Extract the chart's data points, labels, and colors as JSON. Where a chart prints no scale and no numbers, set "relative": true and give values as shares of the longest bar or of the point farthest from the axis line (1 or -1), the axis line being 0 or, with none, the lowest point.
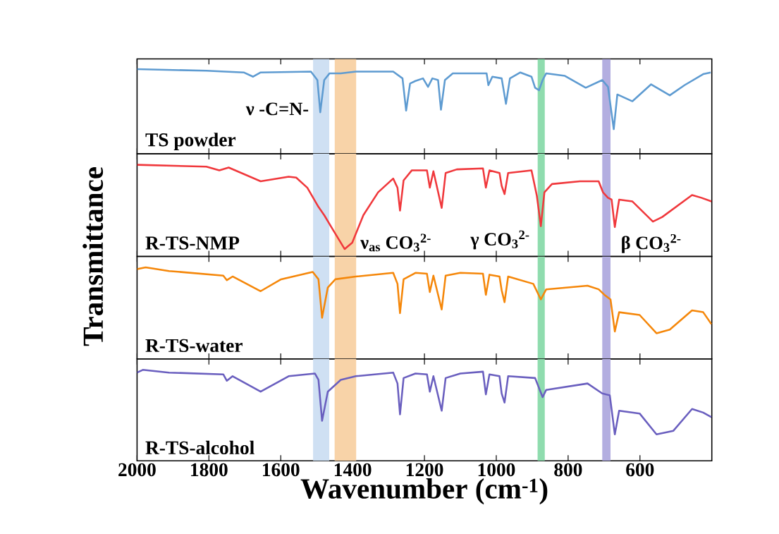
{
  "chart_data": [
    {
      "type": "line",
      "relative": true,
      "xlim": [
        2000,
        400
      ],
      "xticks": [
        2000,
        1800,
        1600,
        1400,
        1200,
        1000,
        800,
        600
      ],
      "tick_labels": false,
      "x": [
        2000,
        1807,
        1703,
        1677,
        1656,
        1516,
        1498,
        1490,
        1479,
        1464,
        1433,
        1391,
        1287,
        1261,
        1251,
        1240,
        1225,
        1204,
        1190,
        1178,
        1162,
        1154,
        1143,
        1121,
        1027,
        1022,
        1011,
        985,
        973,
        962,
        933,
        902,
        892,
        881,
        871,
        861,
        809,
        751,
        705,
        689,
        673,
        663,
        621,
        569,
        517,
        476,
        424,
        403
      ],
      "series": [
        {
          "name": "TS powder",
          "color": "#5e9bd1",
          "values": [
            1.0,
            0.98,
            0.96,
            0.91,
            0.96,
            0.97,
            0.87,
            0.49,
            0.87,
            0.95,
            0.95,
            0.97,
            0.97,
            0.89,
            0.51,
            0.83,
            0.86,
            0.89,
            0.79,
            0.89,
            0.87,
            0.52,
            0.87,
            0.95,
            0.95,
            0.81,
            0.91,
            0.89,
            0.59,
            0.89,
            0.96,
            0.91,
            0.78,
            0.75,
            0.87,
            0.95,
            0.92,
            0.78,
            0.87,
            0.79,
            0.29,
            0.7,
            0.62,
            0.82,
            0.69,
            0.81,
            0.94,
            0.96
          ]
        }
      ],
      "bands": [
        {
          "axis": "x",
          "from": 1510,
          "to": 1465,
          "color": "#cfe0f3"
        },
        {
          "axis": "x",
          "from": 1450,
          "to": 1390,
          "color": "#f8d3a8"
        },
        {
          "axis": "x",
          "from": 885,
          "to": 865,
          "color": "#8fdcae"
        },
        {
          "axis": "x",
          "from": 705,
          "to": 682,
          "color": "#b3aee0"
        }
      ],
      "annotations": [
        "ν -C=N-"
      ]
    },
    {
      "type": "line",
      "relative": true,
      "xlim": [
        2000,
        400
      ],
      "xticks": [
        2000,
        1800,
        1600,
        1400,
        1200,
        1000,
        800,
        600
      ],
      "tick_labels": false,
      "ylabel": "Transmittance",
      "x": [
        2000,
        1807,
        1771,
        1745,
        1656,
        1578,
        1557,
        1526,
        1495,
        1479,
        1453,
        1422,
        1401,
        1370,
        1329,
        1287,
        1275,
        1268,
        1258,
        1235,
        1193,
        1185,
        1175,
        1152,
        1141,
        1110,
        1037,
        1029,
        1019,
        991,
        985,
        977,
        967,
        902,
        887,
        876,
        866,
        845,
        767,
        715,
        703,
        689,
        679,
        670,
        658,
        621,
        564,
        538,
        455,
        429,
        401
      ],
      "series": [
        {
          "name": "R-TS-NMP",
          "color": "#f0383c",
          "values": [
            1.0,
            0.98,
            0.94,
            0.97,
            0.82,
            0.87,
            0.86,
            0.75,
            0.54,
            0.45,
            0.28,
            0.08,
            0.15,
            0.45,
            0.7,
            0.85,
            0.75,
            0.5,
            0.83,
            0.94,
            0.94,
            0.75,
            0.93,
            0.53,
            0.91,
            0.95,
            0.96,
            0.75,
            0.94,
            0.91,
            0.77,
            0.68,
            0.91,
            0.94,
            0.66,
            0.33,
            0.7,
            0.79,
            0.82,
            0.82,
            0.7,
            0.64,
            0.62,
            0.32,
            0.62,
            0.6,
            0.38,
            0.43,
            0.67,
            0.64,
            0.6
          ]
        }
      ],
      "bands": [
        {
          "axis": "x",
          "from": 1510,
          "to": 1465,
          "color": "#cfe0f3"
        },
        {
          "axis": "x",
          "from": 1450,
          "to": 1390,
          "color": "#f8d3a8"
        },
        {
          "axis": "x",
          "from": 885,
          "to": 865,
          "color": "#8fdcae"
        },
        {
          "axis": "x",
          "from": 705,
          "to": 682,
          "color": "#b3aee0"
        }
      ],
      "annotations": [
        "ν$_{as}$ CO$_{3}$$^{2-}$",
        "γ CO$_{3}$$^{2-}$",
        "β CO$_{3}$$^{2-}$"
      ]
    },
    {
      "type": "line",
      "relative": true,
      "xlim": [
        2000,
        400
      ],
      "xticks": [
        2000,
        1800,
        1600,
        1400,
        1200,
        1000,
        800,
        600
      ],
      "tick_labels": false,
      "x": [
        2000,
        1976,
        1911,
        1760,
        1750,
        1734,
        1656,
        1599,
        1511,
        1495,
        1485,
        1469,
        1448,
        1391,
        1287,
        1275,
        1268,
        1258,
        1225,
        1193,
        1185,
        1175,
        1152,
        1141,
        1100,
        1037,
        1029,
        1019,
        991,
        985,
        977,
        967,
        897,
        876,
        861,
        746,
        715,
        699,
        682,
        670,
        658,
        601,
        554,
        517,
        455,
        424,
        401
      ],
      "series": [
        {
          "name": "R-TS-water",
          "color": "#f5870a",
          "values": [
            0.98,
            1.0,
            0.96,
            0.91,
            0.86,
            0.9,
            0.74,
            0.87,
            0.95,
            0.87,
            0.45,
            0.78,
            0.87,
            0.9,
            0.94,
            0.82,
            0.5,
            0.87,
            0.94,
            0.93,
            0.73,
            0.91,
            0.54,
            0.91,
            0.94,
            0.93,
            0.7,
            0.92,
            0.9,
            0.75,
            0.62,
            0.9,
            0.82,
            0.65,
            0.76,
            0.8,
            0.76,
            0.7,
            0.65,
            0.3,
            0.51,
            0.48,
            0.28,
            0.32,
            0.53,
            0.51,
            0.38
          ]
        }
      ],
      "bands": [
        {
          "axis": "x",
          "from": 1510,
          "to": 1465,
          "color": "#cfe0f3"
        },
        {
          "axis": "x",
          "from": 1450,
          "to": 1390,
          "color": "#f8d3a8"
        },
        {
          "axis": "x",
          "from": 885,
          "to": 865,
          "color": "#8fdcae"
        },
        {
          "axis": "x",
          "from": 705,
          "to": 682,
          "color": "#b3aee0"
        }
      ]
    },
    {
      "type": "line",
      "relative": true,
      "xlim": [
        2000,
        400
      ],
      "xticks": [
        2000,
        1800,
        1600,
        1400,
        1200,
        1000,
        800,
        600
      ],
      "tick_labels": "x",
      "xlabel": "Wavenumber (cm$^{-1}$)",
      "x": [
        2000,
        1984,
        1911,
        1760,
        1750,
        1734,
        1656,
        1578,
        1505,
        1495,
        1485,
        1469,
        1433,
        1391,
        1287,
        1275,
        1268,
        1258,
        1225,
        1193,
        1185,
        1175,
        1152,
        1141,
        1100,
        1037,
        1029,
        1019,
        991,
        985,
        977,
        967,
        892,
        871,
        861,
        746,
        705,
        684,
        670,
        658,
        601,
        554,
        507,
        455,
        424,
        401
      ],
      "series": [
        {
          "name": "R-TS-alcohol",
          "color": "#6a5fbf",
          "values": [
            0.97,
            1.0,
            0.97,
            0.95,
            0.88,
            0.93,
            0.76,
            0.93,
            0.96,
            0.89,
            0.44,
            0.76,
            0.89,
            0.93,
            0.97,
            0.85,
            0.51,
            0.91,
            0.96,
            0.95,
            0.76,
            0.93,
            0.55,
            0.91,
            0.96,
            0.98,
            0.73,
            0.95,
            0.93,
            0.74,
            0.64,
            0.93,
            0.91,
            0.7,
            0.78,
            0.85,
            0.74,
            0.72,
            0.29,
            0.55,
            0.52,
            0.29,
            0.33,
            0.57,
            0.53,
            0.48
          ]
        }
      ],
      "bands": [
        {
          "axis": "x",
          "from": 1510,
          "to": 1465,
          "color": "#cfe0f3"
        },
        {
          "axis": "x",
          "from": 1450,
          "to": 1390,
          "color": "#f8d3a8"
        },
        {
          "axis": "x",
          "from": 885,
          "to": 865,
          "color": "#8fdcae"
        },
        {
          "axis": "x",
          "from": 705,
          "to": 682,
          "color": "#b3aee0"
        }
      ]
    }
  ]
}
